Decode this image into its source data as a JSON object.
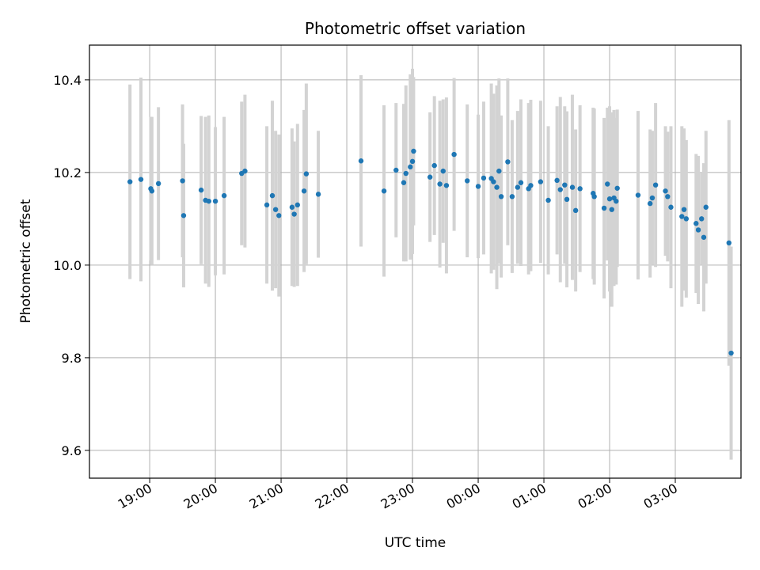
{
  "chart_data": {
    "type": "scatter",
    "title": "Photometric offset variation",
    "xlabel": "UTC time",
    "ylabel": "Photometric offset",
    "x_ticks": [
      "19:00",
      "20:00",
      "21:00",
      "22:00",
      "23:00",
      "00:00",
      "01:00",
      "02:00",
      "03:00"
    ],
    "y_ticks": [
      "9.6",
      "9.8",
      "10.0",
      "10.2",
      "10.4"
    ],
    "xlim": [
      "18:05",
      "04:00"
    ],
    "ylim": [
      9.54,
      10.475
    ],
    "grid": true,
    "point_color": "#1f77b4",
    "errorbar_color": "#d3d3d3",
    "points": [
      [
        "18:42",
        10.18,
        0.21
      ],
      [
        "18:52",
        10.185,
        0.22
      ],
      [
        "19:01",
        10.165,
        0.155
      ],
      [
        "19:02",
        10.16,
        0.16
      ],
      [
        "19:08",
        10.176,
        0.165
      ],
      [
        "19:30",
        10.182,
        0.165
      ],
      [
        "19:31",
        10.107,
        0.155
      ],
      [
        "19:47",
        10.162,
        0.16
      ],
      [
        "19:51",
        10.14,
        0.18
      ],
      [
        "19:54",
        10.138,
        0.185
      ],
      [
        "20:00",
        10.138,
        0.16
      ],
      [
        "20:08",
        10.15,
        0.17
      ],
      [
        "20:24",
        10.198,
        0.155
      ],
      [
        "20:27",
        10.203,
        0.165
      ],
      [
        "20:47",
        10.13,
        0.17
      ],
      [
        "20:52",
        10.15,
        0.205
      ],
      [
        "20:55",
        10.12,
        0.17
      ],
      [
        "20:58",
        10.107,
        0.175
      ],
      [
        "21:10",
        10.125,
        0.17
      ],
      [
        "21:12",
        10.11,
        0.157
      ],
      [
        "21:15",
        10.13,
        0.175
      ],
      [
        "21:21",
        10.16,
        0.175
      ],
      [
        "21:23",
        10.197,
        0.195
      ],
      [
        "21:34",
        10.153,
        0.137
      ],
      [
        "22:13",
        10.225,
        0.185
      ],
      [
        "22:34",
        10.16,
        0.185
      ],
      [
        "22:45",
        10.205,
        0.145
      ],
      [
        "22:52",
        10.178,
        0.17
      ],
      [
        "22:54",
        10.198,
        0.19
      ],
      [
        "22:58",
        10.212,
        0.2
      ],
      [
        "23:00",
        10.224,
        0.2
      ],
      [
        "23:01",
        10.246,
        0.16
      ],
      [
        "23:16",
        10.19,
        0.14
      ],
      [
        "23:20",
        10.215,
        0.15
      ],
      [
        "23:25",
        10.175,
        0.18
      ],
      [
        "23:28",
        10.203,
        0.155
      ],
      [
        "23:31",
        10.172,
        0.19
      ],
      [
        "23:38",
        10.239,
        0.165
      ],
      [
        "23:50",
        10.182,
        0.165
      ],
      [
        "00:00",
        10.17,
        0.155
      ],
      [
        "00:05",
        10.188,
        0.165
      ],
      [
        "00:12",
        10.187,
        0.205
      ],
      [
        "00:14",
        10.18,
        0.19
      ],
      [
        "00:17",
        10.168,
        0.22
      ],
      [
        "00:19",
        10.203,
        0.2
      ],
      [
        "00:21",
        10.148,
        0.175
      ],
      [
        "00:27",
        10.223,
        0.18
      ],
      [
        "00:31",
        10.148,
        0.165
      ],
      [
        "00:36",
        10.168,
        0.165
      ],
      [
        "00:39",
        10.178,
        0.18
      ],
      [
        "00:46",
        10.165,
        0.185
      ],
      [
        "00:48",
        10.172,
        0.185
      ],
      [
        "00:57",
        10.18,
        0.175
      ],
      [
        "01:04",
        10.14,
        0.16
      ],
      [
        "01:12",
        10.183,
        0.16
      ],
      [
        "01:15",
        10.163,
        0.2
      ],
      [
        "01:19",
        10.173,
        0.17
      ],
      [
        "01:21",
        10.142,
        0.19
      ],
      [
        "01:26",
        10.168,
        0.2
      ],
      [
        "01:29",
        10.118,
        0.175
      ],
      [
        "01:33",
        10.165,
        0.18
      ],
      [
        "01:45",
        10.155,
        0.185
      ],
      [
        "01:46",
        10.148,
        0.19
      ],
      [
        "01:55",
        10.123,
        0.195
      ],
      [
        "01:58",
        10.175,
        0.165
      ],
      [
        "02:00",
        10.143,
        0.2
      ],
      [
        "02:02",
        10.12,
        0.21
      ],
      [
        "02:04",
        10.145,
        0.19
      ],
      [
        "02:06",
        10.138,
        0.18
      ],
      [
        "02:07",
        10.166,
        0.17
      ],
      [
        "02:26",
        10.151,
        0.182
      ],
      [
        "02:37",
        10.133,
        0.16
      ],
      [
        "02:39",
        10.145,
        0.145
      ],
      [
        "02:42",
        10.173,
        0.177
      ],
      [
        "02:51",
        10.16,
        0.14
      ],
      [
        "02:53",
        10.148,
        0.14
      ],
      [
        "02:56",
        10.125,
        0.175
      ],
      [
        "03:06",
        10.105,
        0.195
      ],
      [
        "03:08",
        10.12,
        0.175
      ],
      [
        "03:10",
        10.1,
        0.17
      ],
      [
        "03:19",
        10.09,
        0.15
      ],
      [
        "03:21",
        10.076,
        0.16
      ],
      [
        "03:24",
        10.1,
        0.1
      ],
      [
        "03:26",
        10.06,
        0.16
      ],
      [
        "03:28",
        10.125,
        0.165
      ],
      [
        "03:49",
        10.048,
        0.265
      ],
      [
        "03:51",
        9.81,
        0.23
      ]
    ]
  }
}
